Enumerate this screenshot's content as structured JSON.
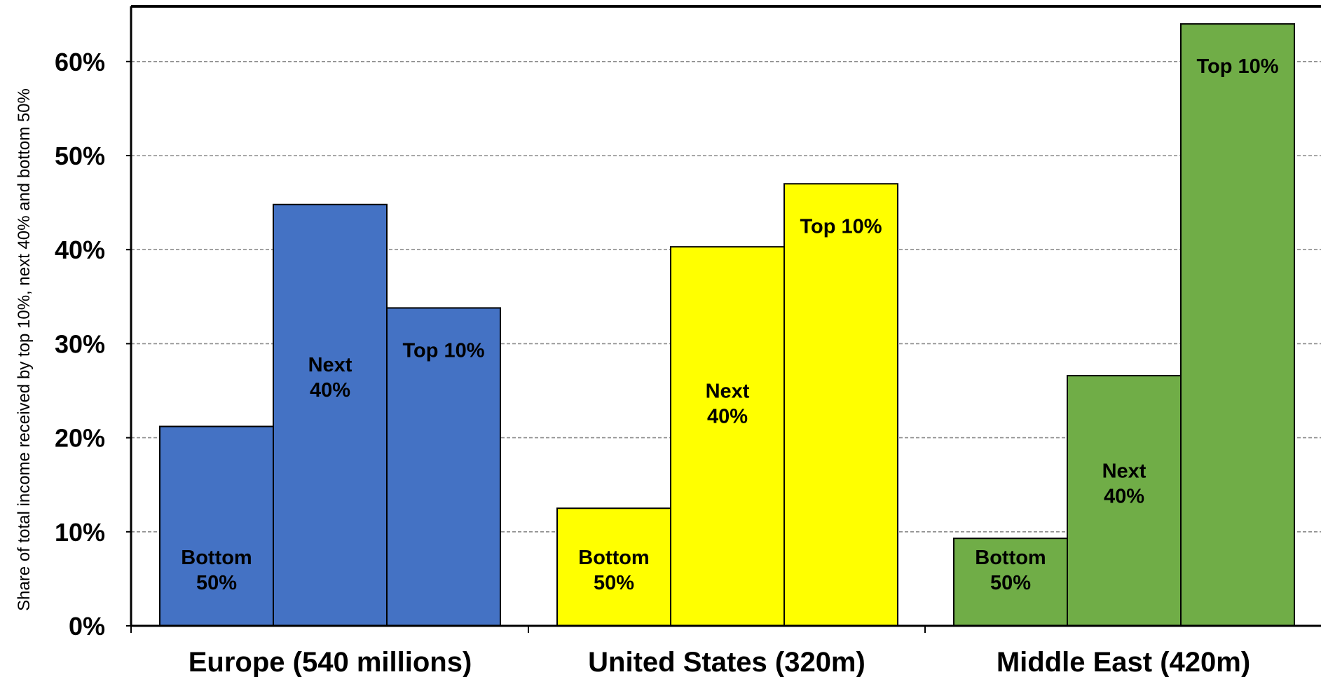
{
  "chart_data": {
    "type": "bar",
    "title": "",
    "ylabel": "Share of total income received by top 10%, next 40% and bottom 50%",
    "xlabel": "",
    "ylim": [
      0,
      66
    ],
    "y_ticks": [
      "0%",
      "10%",
      "20%",
      "30%",
      "40%",
      "50%",
      "60%"
    ],
    "grid": true,
    "legend": "none",
    "categories": [
      "Europe (540 millions)",
      "United States (320m)",
      "Middle East (420m)"
    ],
    "groups": [
      {
        "category": "Europe (540 millions)",
        "color": "#4472C4",
        "bars": [
          {
            "label": [
              "Bottom",
              "50%"
            ],
            "value": 21.2
          },
          {
            "label": [
              "Next",
              "40%"
            ],
            "value": 44.8
          },
          {
            "label": [
              "Top 10%"
            ],
            "value": 33.8
          }
        ]
      },
      {
        "category": "United States (320m)",
        "color": "#FFFF00",
        "bars": [
          {
            "label": [
              "Bottom",
              "50%"
            ],
            "value": 12.5
          },
          {
            "label": [
              "Next",
              "40%"
            ],
            "value": 40.3
          },
          {
            "label": [
              "Top 10%"
            ],
            "value": 47.0
          }
        ]
      },
      {
        "category": "Middle East (420m)",
        "color": "#70AD47",
        "bars": [
          {
            "label": [
              "Bottom",
              "50%"
            ],
            "value": 9.3
          },
          {
            "label": [
              "Next",
              "40%"
            ],
            "value": 26.6
          },
          {
            "label": [
              "Top 10%"
            ],
            "value": 64.0
          }
        ]
      }
    ]
  }
}
